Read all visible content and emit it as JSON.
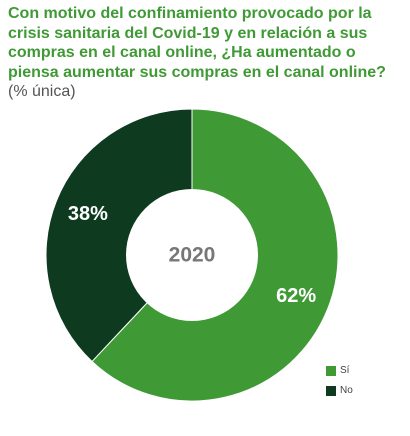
{
  "title": {
    "main": "Con motivo del confinamiento provocado por la crisis sanitaria del Covid-19 y en relación a sus compras en el canal online, ¿Ha aumentado o piensa aumentar sus compras en el canal online?",
    "note": "(% única)"
  },
  "colors": {
    "title": "#3f9a35",
    "si": "#3f9a35",
    "no": "#0e3b20",
    "label": "#ffffff",
    "center": "#777777"
  },
  "chart_data": {
    "type": "pie",
    "donut": true,
    "center_label": "2020",
    "categories": [
      "Sí",
      "No"
    ],
    "values": [
      62,
      38
    ],
    "value_labels": [
      "62%",
      "38%"
    ],
    "legend_position": "bottom-right"
  },
  "legend": [
    {
      "label": "Sí",
      "color": "#3f9a35"
    },
    {
      "label": "No",
      "color": "#0e3b20"
    }
  ]
}
